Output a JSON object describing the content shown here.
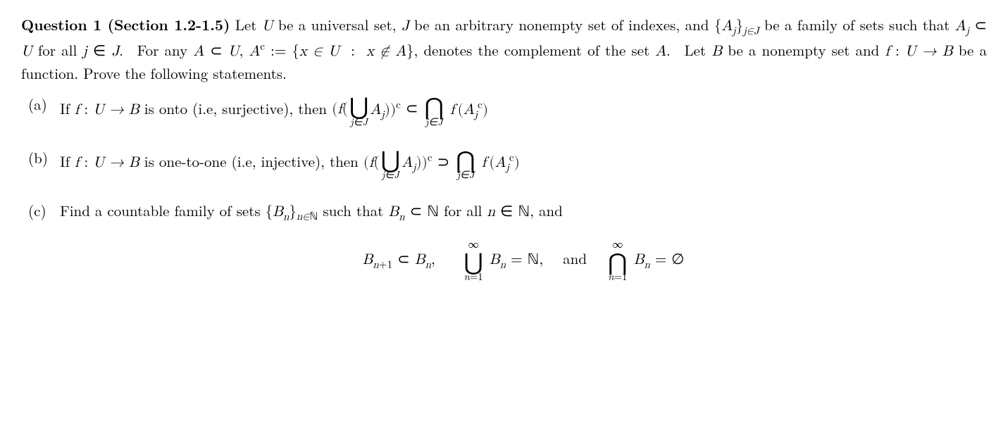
{
  "header": {
    "label": "Question 1 (Section 1.2-1.5)",
    "intro_html": "Let <span class='math'>U</span> be a universal set, <span class='math'>J</span> be an arbitrary nonempty set of indexes, and <span class='math'><span class='rm'>{</span>A<span class='sub'>j</span><span class='rm'>}</span><span class='sub'>j∈J</span></span> be a family of sets such that <span class='math'>A<span class='sub'>j</span></span> ⊂ <span class='math'>U</span> for all <span class='math'>j</span> ∈ <span class='math'>J</span>.&nbsp; For any <span class='math'>A</span> ⊂ <span class='math'>U</span>, <span class='math'>A<span class='sup'><span class='rm'>c</span></span></span> := <span class='math'><span class='rm'>{</span>x ∈ U&nbsp; <span class='rm'>:</span>&nbsp; x ∉ A<span class='rm'>}</span></span>, denotes the complement of the set <span class='math'>A</span>.&nbsp; Let <span class='math'>B</span> be a nonempty set and <span class='math'>f <span class='rm'>:</span> U → B</span> be a function. Prove the following statements."
  },
  "items": [
    {
      "marker": "(a)",
      "body_html": "If <span class='math'>f <span class='rm'>:</span> U → B</span> is onto (i.e, surjective), then <span class='pad'><span class='math'><span class='rm'>(</span>f<span class='rm'>(</span></span><span class='bigop'><span class='sym'>⋃</span><span class='lim'>j∈J</span></span><span class='math'>A<span class='sub'>j</span><span class='rm'>))</span><span class='sup'><span class='rm'>c</span></span></span> ⊂ <span class='bigop'><span class='sym'>⋂</span><span class='lim'>j∈J</span></span> <span class='math'>f&thinsp;<span class='rm'>(</span>A<span class='sub'>j</span><span class='sup'><span class='rm'>c</span></span><span class='rm'>)</span></span></span>"
    },
    {
      "marker": "(b)",
      "body_html": "If <span class='math'>f <span class='rm'>:</span> U → B</span> is one-to-one (i.e, injective), then <span class='pad'><span class='math'><span class='rm'>(</span>f<span class='rm'>(</span></span><span class='bigop'><span class='sym'>⋃</span><span class='lim'>j∈J</span></span><span class='math'>A<span class='sub'>j</span><span class='rm'>))</span><span class='sup'><span class='rm'>c</span></span></span> ⊃ <span class='bigop'><span class='sym'>⋂</span><span class='lim'>j∈J</span></span> <span class='math'>f&thinsp;<span class='rm'>(</span>A<span class='sub'>j</span><span class='sup'><span class='rm'>c</span></span><span class='rm'>)</span></span></span>"
    },
    {
      "marker": "(c)",
      "body_html": "Find a countable family of sets <span class='math'><span class='rm'>{</span>B<span class='sub'>n</span><span class='rm'>}</span><span class='sub'>n∈<span class='bbN rm'>ℕ</span></span></span> such that <span class='math'>B<span class='sub'>n</span></span> ⊂ <span class='bbN'>ℕ</span> for all <span class='math'>n</span> ∈ <span class='bbN'>ℕ</span>, and",
      "display_html": "<span class='math'>B<span class='sub'>n<span class='rm'>+1</span></span></span> ⊂ <span class='math'>B<span class='sub'>n</span></span>,&nbsp;&nbsp;&nbsp; <span class='bigop'><span class='ulim'>∞</span><span class='sym'>⋃</span><span class='lim'>n<span class='rm'>=1</span></span></span> <span class='math'>B<span class='sub'>n</span></span> = <span class='bbN'>ℕ</span>,&nbsp;&nbsp; and&nbsp;&nbsp; <span class='bigop'><span class='ulim'>∞</span><span class='sym'>⋂</span><span class='lim'>n<span class='rm'>=1</span></span></span> <span class='math'>B<span class='sub'>n</span></span> = ∅"
    }
  ]
}
